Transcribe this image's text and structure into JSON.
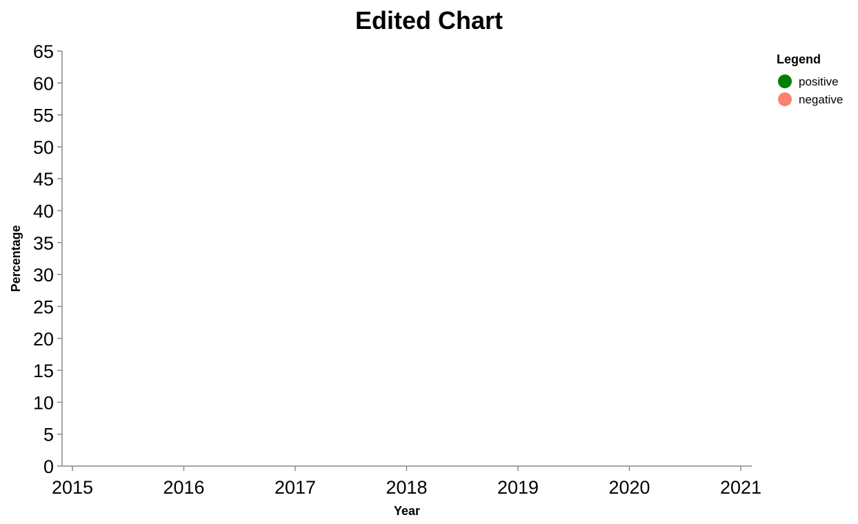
{
  "chart_data": {
    "type": "line",
    "title": "Edited Chart",
    "xlabel": "Year",
    "ylabel": "Percentage",
    "x_ticks": [
      "2015",
      "2016",
      "2017",
      "2018",
      "2019",
      "2020",
      "2021"
    ],
    "y_ticks": [
      "0",
      "5",
      "10",
      "15",
      "20",
      "25",
      "30",
      "35",
      "40",
      "45",
      "50",
      "55",
      "60",
      "65"
    ],
    "xlim": [
      2015,
      2021
    ],
    "ylim": [
      0,
      65
    ],
    "grid": false,
    "legend": {
      "title": "Legend",
      "placement": "top-right",
      "entries": [
        {
          "label": "positive",
          "color": "#008000"
        },
        {
          "label": "negative",
          "color": "#FA8072"
        }
      ]
    },
    "series": []
  }
}
